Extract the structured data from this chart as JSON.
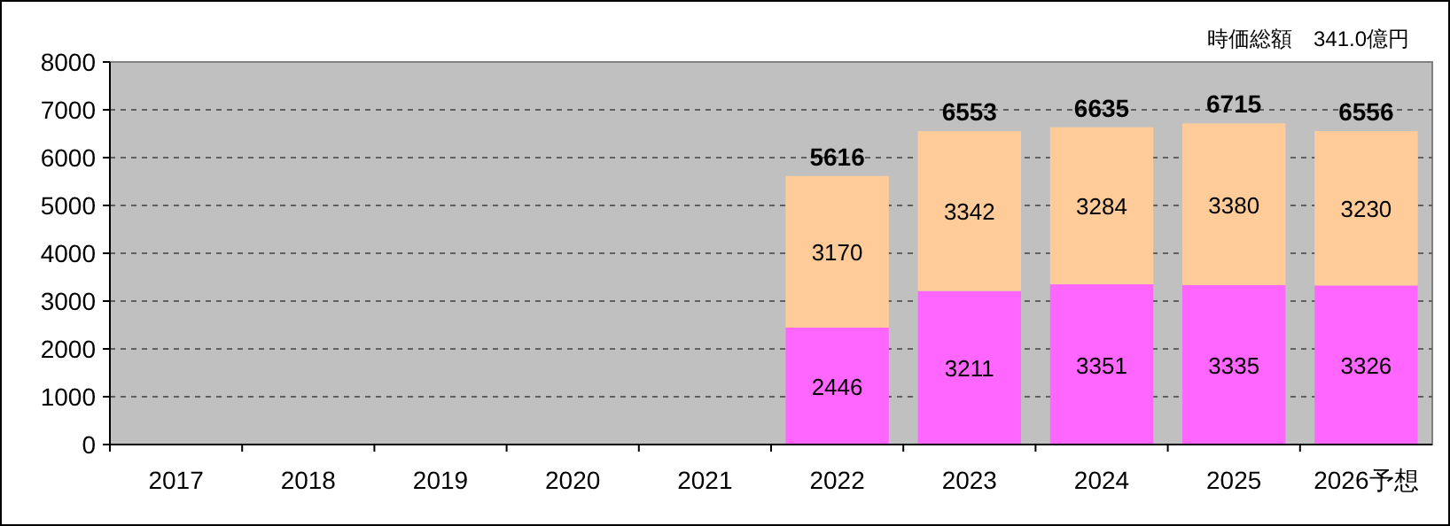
{
  "chart_data": {
    "type": "bar",
    "stacked": true,
    "data_labels": true,
    "grid": "y",
    "categories": [
      "2017",
      "2018",
      "2019",
      "2020",
      "2021",
      "2022",
      "2023",
      "2024",
      "2025",
      "2026予想"
    ],
    "series": [
      {
        "color": "#ff66ff",
        "values": [
          null,
          null,
          null,
          null,
          null,
          2446,
          3211,
          3351,
          3335,
          3326
        ]
      },
      {
        "color": "#ffcc99",
        "values": [
          null,
          null,
          null,
          null,
          null,
          3170,
          3342,
          3284,
          3380,
          3230
        ]
      }
    ],
    "totals": [
      null,
      null,
      null,
      null,
      null,
      "5616",
      "6553",
      "6635",
      "6715",
      "6556"
    ],
    "ylim": [
      0,
      8000
    ],
    "yticks": [
      0,
      1000,
      2000,
      3000,
      4000,
      5000,
      6000,
      7000,
      8000
    ],
    "annotations": [
      "時価総額　341.0億円"
    ]
  }
}
